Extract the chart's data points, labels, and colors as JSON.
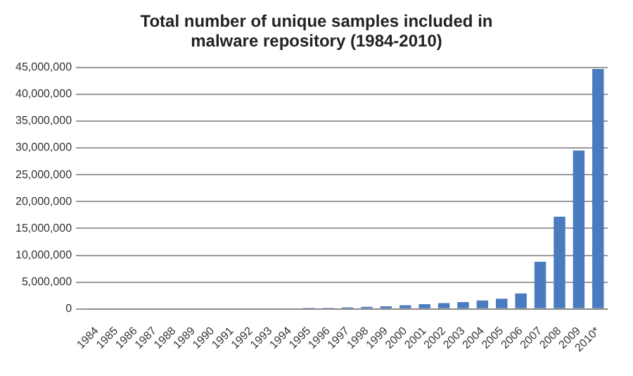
{
  "chart_data": {
    "type": "bar",
    "title": "Total number of unique samples included in malware repository (1984-2010)",
    "categories": [
      "1984",
      "1985",
      "1986",
      "1987",
      "1988",
      "1989",
      "1990",
      "1991",
      "1992",
      "1993",
      "1994",
      "1995",
      "1996",
      "1997",
      "1998",
      "1999",
      "2000",
      "2001",
      "2002",
      "2003",
      "2004",
      "2005",
      "2006",
      "2007",
      "2008",
      "2009",
      "2010*"
    ],
    "values": [
      0,
      0,
      0,
      0,
      0,
      0,
      0,
      0,
      0,
      0,
      0,
      200000,
      200000,
      300000,
      400000,
      500000,
      700000,
      900000,
      1100000,
      1300000,
      1600000,
      1900000,
      2900000,
      8800000,
      17200000,
      29500000,
      44700000
    ],
    "color": "#4a7bbf",
    "ylim": [
      0,
      45000000
    ],
    "yticks": [
      0,
      {
        "value": 5000000,
        "label": "5,000,000"
      },
      {
        "value": 10000000,
        "label": "10,000,000"
      },
      {
        "value": 15000000,
        "label": "15,000,000"
      },
      {
        "value": 20000000,
        "label": "20,000,000"
      },
      {
        "value": 25000000,
        "label": "25,000,000"
      },
      {
        "value": 30000000,
        "label": "30,000,000"
      },
      {
        "value": 35000000,
        "label": "35,000,000"
      },
      {
        "value": 40000000,
        "label": "40,000,000"
      },
      {
        "value": 45000000,
        "label": "45,000,000"
      }
    ],
    "grid": "y"
  }
}
